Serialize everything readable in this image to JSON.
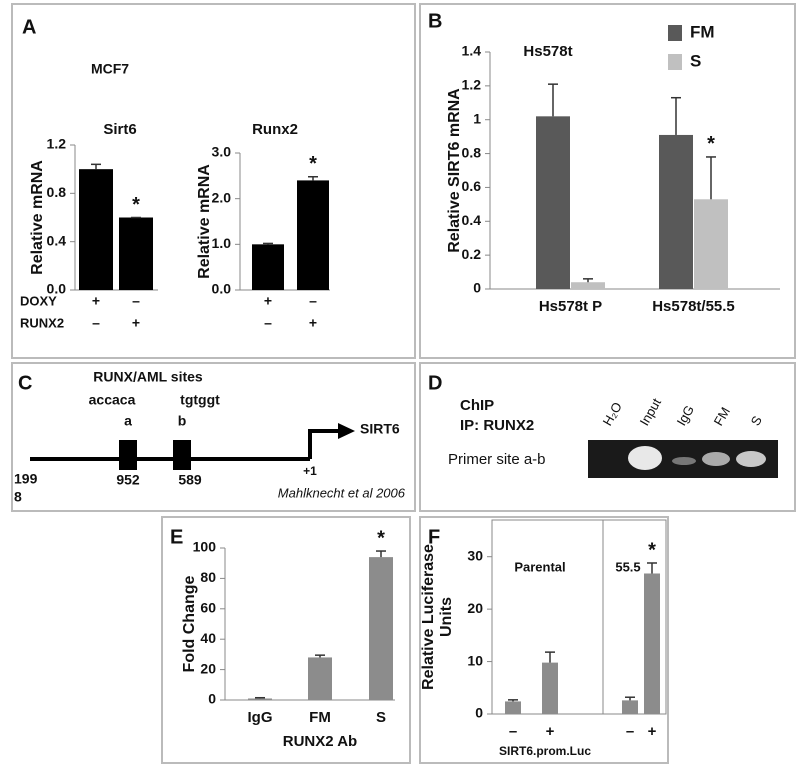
{
  "panels": [
    "A",
    "B",
    "C",
    "D",
    "E",
    "F"
  ],
  "panel_a_title": "MCF7",
  "chart_data": [
    {
      "type": "bar",
      "title": "Sirt6",
      "ylabel": [
        "Relative mRNA"
      ],
      "ylim": [
        0,
        1.2
      ],
      "yticks": [
        {
          "value": 0,
          "label": "0.0"
        },
        0.4,
        0.8,
        1.2
      ],
      "series": [
        {
          "color": "#000000",
          "values": [
            1.0,
            0.6
          ],
          "errors": [
            0.04,
            0
          ],
          "significance": [
            null,
            "*"
          ]
        }
      ],
      "condition_names": [
        "DOXY",
        "RUNX2"
      ],
      "conditions": [
        [
          "+",
          "–"
        ],
        [
          "–",
          "+"
        ]
      ]
    },
    {
      "type": "bar",
      "title": "Runx2",
      "ylabel": [
        "Relative mRNA"
      ],
      "ylim": [
        0,
        3
      ],
      "yticks": [
        {
          "value": 0,
          "label": "0.0"
        },
        {
          "value": 1,
          "label": "1.0"
        },
        {
          "value": 2,
          "label": "2.0"
        },
        {
          "value": 3,
          "label": "3.0"
        }
      ],
      "series": [
        {
          "color": "#000000",
          "values": [
            1.0,
            2.4
          ],
          "errors": [
            0.02,
            0.08
          ],
          "significance": [
            null,
            "*"
          ]
        }
      ],
      "conditions": [
        [
          "+",
          "–"
        ],
        [
          "–",
          "+"
        ]
      ]
    },
    {
      "type": "bar",
      "title": "Hs578t",
      "ylabel": [
        "Relative SIRT6  mRNA"
      ],
      "categories": [
        "Hs578t P",
        "Hs578t/55.5"
      ],
      "ylim": [
        0,
        1.4
      ],
      "yticks": [
        0,
        0.2,
        0.4,
        0.6,
        0.8,
        1,
        1.2,
        1.4
      ],
      "series": [
        {
          "name": "FM",
          "color": "#595959",
          "values": [
            1.02,
            0.91
          ],
          "errors": [
            0.19,
            0.22
          ],
          "significance": [
            null,
            null
          ]
        },
        {
          "name": "S",
          "color": "#c0c0c0",
          "values": [
            0.04,
            0.53
          ],
          "errors": [
            0.02,
            0.25
          ],
          "significance": [
            null,
            "*"
          ]
        }
      ]
    },
    {
      "type": "bar",
      "ylabel": [
        "Fold Change"
      ],
      "xlabel": "RUNX2 Ab",
      "categories": [
        "IgG",
        "FM",
        "S"
      ],
      "ylim": [
        0,
        100
      ],
      "yticks": [
        0,
        20,
        40,
        60,
        80,
        100
      ],
      "series": [
        {
          "color": "#8c8c8c",
          "values": [
            1,
            28,
            94
          ],
          "errors": [
            0.5,
            1.5,
            4
          ],
          "significance": [
            null,
            null,
            "*"
          ]
        }
      ]
    },
    {
      "type": "bar",
      "ylabel": [
        "Relative Luciferase",
        "Units"
      ],
      "xlabel": "SIRT6.prom.Luc",
      "categories": [
        "–",
        "+",
        "–",
        "+"
      ],
      "group_labels": [
        "Parental",
        "55.5"
      ],
      "ylim": [
        0,
        37
      ],
      "yticks": [
        0,
        10,
        20,
        30
      ],
      "series": [
        {
          "color": "#8c8c8c",
          "values": [
            2.4,
            9.8,
            2.6,
            26.8
          ],
          "errors": [
            0.3,
            2,
            0.6,
            2
          ],
          "significance": [
            null,
            null,
            null,
            "*"
          ]
        }
      ]
    }
  ],
  "diagram_c": {
    "sites_title": "RUNX/AML sites",
    "site_a_seq": "accaca",
    "site_b_seq": "tgtggt",
    "site_a": "a",
    "site_b": "b",
    "gene": "SIRT6",
    "start_lines": [
      "199",
      "8"
    ],
    "pos_a": "952",
    "pos_b": "589",
    "tss": "+1",
    "citation": "Mahlknecht et al 2006"
  },
  "gel_d": {
    "title": "ChIP",
    "ip": "IP: RUNX2",
    "row": "Primer site a-b",
    "lanes": [
      "H₂O",
      "Input",
      "IgG",
      "FM",
      "S"
    ]
  }
}
